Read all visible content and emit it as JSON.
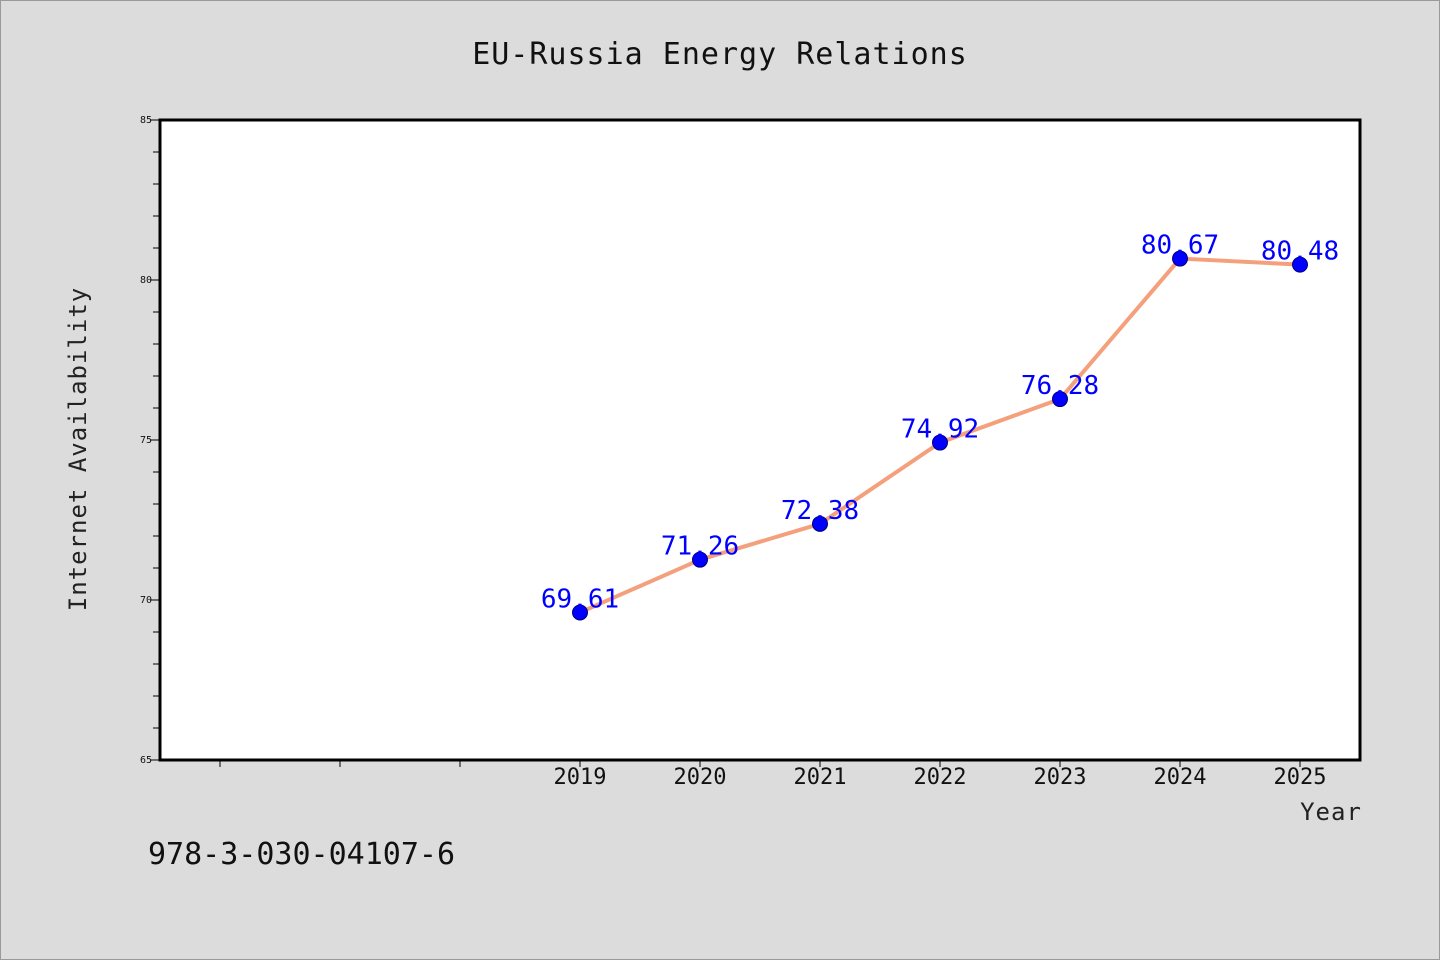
{
  "chart_data": {
    "type": "line",
    "title": "EU-Russia Energy Relations",
    "xlabel": "Year",
    "ylabel": "Internet Availability",
    "categories": [
      "2019",
      "2020",
      "2021",
      "2022",
      "2023",
      "2024",
      "2025"
    ],
    "series": [
      {
        "values": [
          69.61,
          71.26,
          72.38,
          74.92,
          76.28,
          80.67,
          80.48
        ],
        "data_labels": [
          "69.61",
          "71.26",
          "72.38",
          "74.92",
          "76.28",
          "80.67",
          "80.48"
        ]
      }
    ],
    "ylim": [
      65,
      85
    ],
    "yticks": [
      "65",
      "70",
      "75",
      "80",
      "85"
    ],
    "grid": false,
    "legend": "none"
  },
  "footer": {
    "isbn": "978-3-030-04107-6"
  },
  "colors": {
    "background": "#dcdcdc",
    "plot_background": "#ffffff",
    "line": "#f4a07c",
    "marker": "#0000ff",
    "data_label": "#0000ff"
  }
}
